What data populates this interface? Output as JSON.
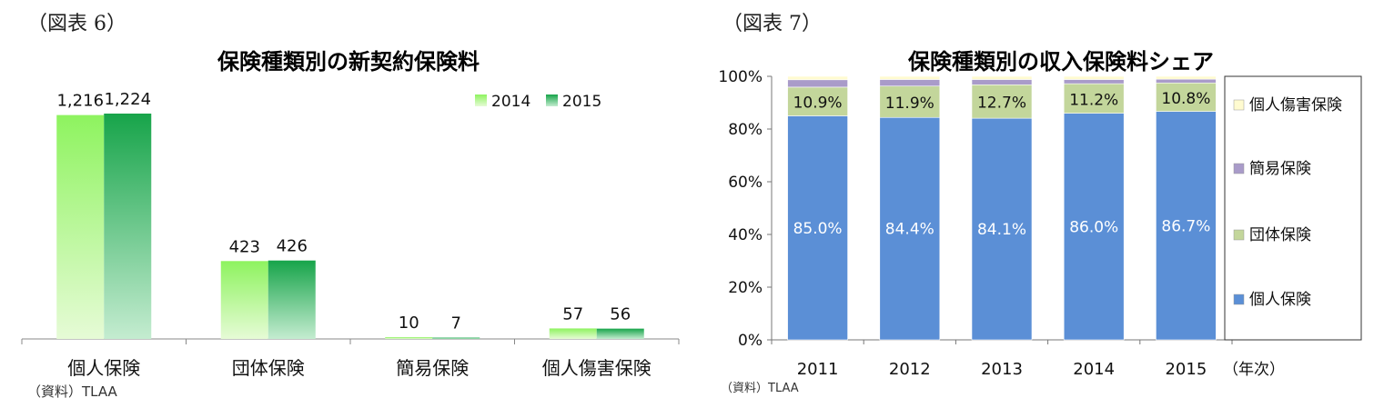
{
  "chart_data": [
    {
      "type": "bar",
      "figure_label": "（図表 6）",
      "title": "保険種類別の新契約保険料",
      "source": "（資料）TLAA",
      "categories": [
        "個人保険",
        "団体保険",
        "簡易保険",
        "個人傷害保険"
      ],
      "series": [
        {
          "name": "2014",
          "values": [
            1216,
            423,
            10,
            57
          ],
          "labels": [
            "1,216",
            "423",
            "10",
            "57"
          ],
          "color_top": "#8ef35f",
          "color_bottom": "#e6fbd6"
        },
        {
          "name": "2015",
          "values": [
            1224,
            426,
            7,
            56
          ],
          "labels": [
            "1,224",
            "426",
            "7",
            "56"
          ],
          "color_top": "#17a44a",
          "color_bottom": "#c4ecd0"
        }
      ],
      "ylim": [
        0,
        1224
      ],
      "legend_position": "top-right",
      "grid": false
    },
    {
      "type": "bar",
      "stacked": true,
      "figure_label": "（図表 7）",
      "title": "保険種類別の収入保険料シェア",
      "source": "（資料）TLAA",
      "categories": [
        "2011",
        "2012",
        "2013",
        "2014",
        "2015"
      ],
      "x_unit": "（年次）",
      "yticks": [
        "0%",
        "20%",
        "40%",
        "60%",
        "80%",
        "100%"
      ],
      "ylim": [
        0,
        100
      ],
      "series": [
        {
          "name": "個人保険",
          "values": [
            85.0,
            84.4,
            84.1,
            86.0,
            86.7
          ],
          "labels": [
            "85.0%",
            "84.4%",
            "84.1%",
            "86.0%",
            "86.7%"
          ],
          "color": "#5b8fd6"
        },
        {
          "name": "団体保険",
          "values": [
            10.9,
            11.9,
            12.7,
            11.2,
            10.8
          ],
          "labels": [
            "10.9%",
            "11.9%",
            "12.7%",
            "11.2%",
            "10.8%"
          ],
          "color": "#c3d69b"
        },
        {
          "name": "簡易保険",
          "values": [
            2.8,
            2.5,
            2.0,
            1.6,
            1.4
          ],
          "color": "#a99bc9"
        },
        {
          "name": "個人傷害保険",
          "values": [
            1.3,
            1.2,
            1.2,
            1.2,
            1.1
          ],
          "color": "#fffbd0"
        }
      ],
      "legend_position": "right",
      "grid": false
    }
  ]
}
